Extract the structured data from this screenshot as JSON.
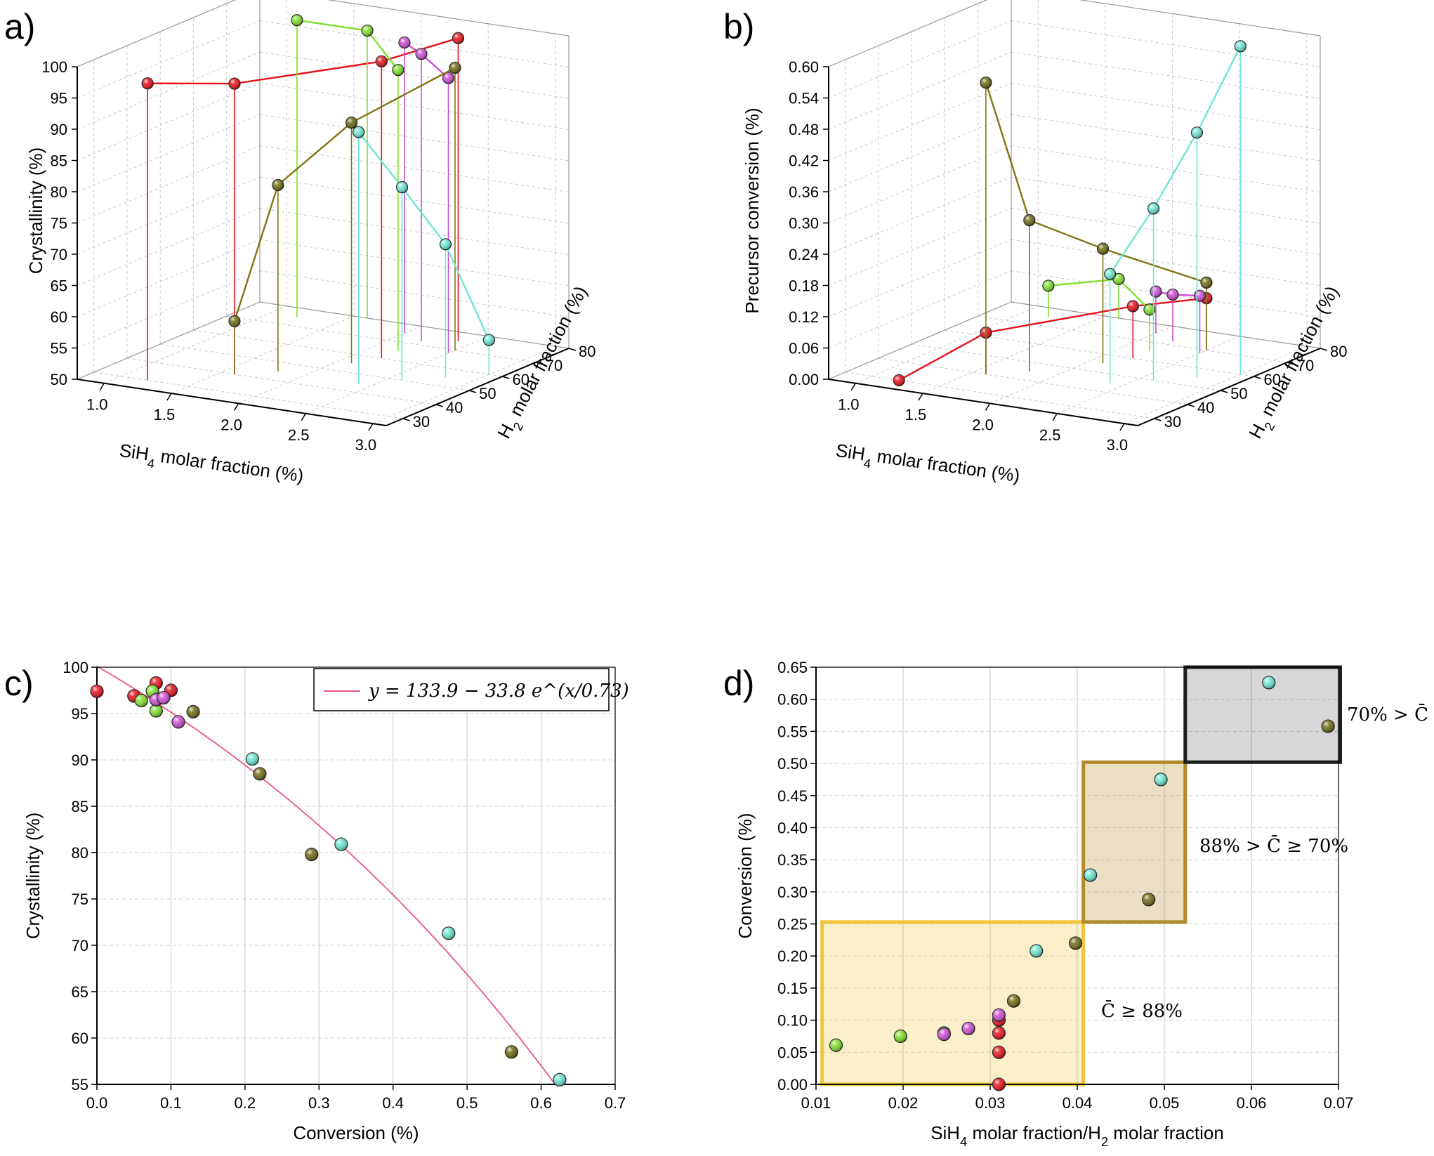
{
  "colors": {
    "red": "#e8101a",
    "green": "#7ee02c",
    "magenta": "#cc4fd3",
    "olive": "#6e6a14",
    "olive_line": "#807413",
    "cyan": "#6ee6d4",
    "fit": "#e8587e",
    "box_light": "#f0c43c",
    "box_mid": "#b28a2c",
    "box_dark": "#1b1f1a"
  },
  "panel_labels": [
    "a)",
    "b)",
    "c)",
    "d)"
  ],
  "chart_data": [
    {
      "id": "a",
      "type": "scatter",
      "projection": "3d",
      "zlabel": "Crystallinity (%)",
      "xlabel": "SiH4 molar fraction (%)",
      "ylabel": "H2 molar fraction (%)",
      "xticks": [
        "1.0",
        "1.5",
        "2.0",
        "2.5",
        "3.0"
      ],
      "yticks": [
        "30",
        "40",
        "50",
        "60",
        "70",
        "80"
      ],
      "zticks": [
        "50",
        "55",
        "60",
        "65",
        "70",
        "75",
        "80",
        "85",
        "90",
        "95",
        "100"
      ],
      "xlim": [
        0.8,
        3.1
      ],
      "ylim": [
        25,
        80
      ],
      "zlim": [
        50,
        100
      ],
      "series": [
        {
          "color": "red",
          "points": [
            [
              1.2,
              30,
              97.5
            ],
            [
              1.6,
              40,
              96.5
            ],
            [
              2.2,
              60,
              97.5
            ],
            [
              2.4,
              75,
              98.5
            ]
          ]
        },
        {
          "color": "green",
          "points": [
            [
              1.2,
              75,
              97.5
            ],
            [
              1.6,
              80,
              96
            ],
            [
              2.2,
              65,
              95
            ]
          ]
        },
        {
          "color": "magenta",
          "points": [
            [
              2.0,
              75,
              96.5
            ],
            [
              2.2,
              72,
              96
            ],
            [
              2.5,
              68,
              94
            ]
          ]
        },
        {
          "color": "olive",
          "points": [
            [
              1.6,
              40,
              58.5
            ],
            [
              1.8,
              45,
              79.8
            ],
            [
              2.1,
              55,
              88.5
            ],
            [
              2.5,
              70,
              95.2
            ]
          ]
        },
        {
          "color": "cyan",
          "points": [
            [
              2.4,
              45,
              90.2
            ],
            [
              2.6,
              50,
              80.9
            ],
            [
              2.8,
              55,
              71.3
            ],
            [
              3.0,
              60,
              55.5
            ]
          ]
        }
      ]
    },
    {
      "id": "b",
      "type": "scatter",
      "projection": "3d",
      "zlabel": "Precursor conversion (%)",
      "xlabel": "SiH4 molar fraction (%)",
      "ylabel": "H2 molar fraction (%)",
      "xticks": [
        "1.0",
        "1.5",
        "2.0",
        "2.5",
        "3.0"
      ],
      "yticks": [
        "30",
        "40",
        "50",
        "60",
        "70",
        "80"
      ],
      "zticks": [
        "0.00",
        "0.06",
        "0.12",
        "0.18",
        "0.24",
        "0.30",
        "0.36",
        "0.42",
        "0.48",
        "0.54",
        "0.60"
      ],
      "xlim": [
        0.8,
        3.1
      ],
      "ylim": [
        25,
        80
      ],
      "zlim": [
        0,
        0.6
      ],
      "series": [
        {
          "color": "red",
          "points": [
            [
              1.2,
              30,
              0.0
            ],
            [
              1.6,
              40,
              0.08
            ],
            [
              2.2,
              60,
              0.1
            ],
            [
              2.5,
              70,
              0.1
            ]
          ]
        },
        {
          "color": "green",
          "points": [
            [
              1.2,
              75,
              0.06
            ],
            [
              1.6,
              80,
              0.075
            ],
            [
              2.2,
              65,
              0.08
            ]
          ]
        },
        {
          "color": "magenta",
          "points": [
            [
              2.0,
              75,
              0.08
            ],
            [
              2.2,
              72,
              0.09
            ],
            [
              2.5,
              68,
              0.11
            ]
          ]
        },
        {
          "color": "olive",
          "points": [
            [
              1.6,
              40,
              0.56
            ],
            [
              1.8,
              45,
              0.29
            ],
            [
              2.1,
              55,
              0.22
            ],
            [
              2.5,
              70,
              0.13
            ]
          ]
        },
        {
          "color": "cyan",
          "points": [
            [
              2.4,
              45,
              0.21
            ],
            [
              2.6,
              50,
              0.33
            ],
            [
              2.8,
              55,
              0.47
            ],
            [
              3.0,
              60,
              0.63
            ]
          ]
        }
      ]
    },
    {
      "id": "c",
      "type": "scatter",
      "xlabel": "Conversion (%)",
      "ylabel": "Crystallinity (%)",
      "xlim": [
        0,
        0.7
      ],
      "ylim": [
        55,
        100
      ],
      "xticks": [
        "0.0",
        "0.1",
        "0.2",
        "0.3",
        "0.4",
        "0.5",
        "0.6",
        "0.7"
      ],
      "yticks": [
        "55",
        "60",
        "65",
        "70",
        "75",
        "80",
        "85",
        "90",
        "95",
        "100"
      ],
      "grid": true,
      "legend": "top-right",
      "legend_label": "y = 133.9 − 33.8 e^(x/0.73)",
      "fit": {
        "a": 133.9,
        "b": 33.8,
        "c": 0.73
      },
      "series": [
        {
          "color": "red",
          "points": [
            [
              0.0,
              97.4
            ],
            [
              0.05,
              96.9
            ],
            [
              0.08,
              98.3
            ],
            [
              0.1,
              97.5
            ]
          ]
        },
        {
          "color": "green",
          "points": [
            [
              0.06,
              96.4
            ],
            [
              0.075,
              97.4
            ],
            [
              0.08,
              95.3
            ]
          ]
        },
        {
          "color": "magenta",
          "points": [
            [
              0.08,
              96.5
            ],
            [
              0.09,
              96.7
            ],
            [
              0.11,
              94.1
            ]
          ]
        },
        {
          "color": "olive",
          "points": [
            [
              0.13,
              95.2
            ],
            [
              0.22,
              88.5
            ],
            [
              0.29,
              79.8
            ],
            [
              0.56,
              58.5
            ]
          ]
        },
        {
          "color": "cyan",
          "points": [
            [
              0.21,
              90.1
            ],
            [
              0.33,
              80.9
            ],
            [
              0.475,
              71.3
            ],
            [
              0.625,
              55.5
            ]
          ]
        }
      ]
    },
    {
      "id": "d",
      "type": "scatter",
      "xlabel": "SiH4 molar fraction/H2 molar fraction",
      "ylabel": "Conversion (%)",
      "xlim": [
        0.01,
        0.07
      ],
      "ylim": [
        0,
        0.65
      ],
      "xticks": [
        "0.01",
        "0.02",
        "0.03",
        "0.04",
        "0.05",
        "0.06",
        "0.07"
      ],
      "yticks": [
        "0.00",
        "0.05",
        "0.10",
        "0.15",
        "0.20",
        "0.25",
        "0.30",
        "0.35",
        "0.40",
        "0.45",
        "0.50",
        "0.55",
        "0.60",
        "0.65"
      ],
      "grid": true,
      "series": [
        {
          "color": "red",
          "points": [
            [
              0.031,
              0.0
            ],
            [
              0.031,
              0.05
            ],
            [
              0.031,
              0.08
            ],
            [
              0.031,
              0.1
            ]
          ]
        },
        {
          "color": "green",
          "points": [
            [
              0.0123,
              0.061
            ],
            [
              0.0197,
              0.075
            ],
            [
              0.0247,
              0.08
            ]
          ]
        },
        {
          "color": "magenta",
          "points": [
            [
              0.0247,
              0.078
            ],
            [
              0.0275,
              0.087
            ],
            [
              0.031,
              0.108
            ]
          ]
        },
        {
          "color": "olive",
          "points": [
            [
              0.0327,
              0.13
            ],
            [
              0.0398,
              0.22
            ],
            [
              0.0482,
              0.288
            ],
            [
              0.0688,
              0.558
            ]
          ]
        },
        {
          "color": "cyan",
          "points": [
            [
              0.0353,
              0.208
            ],
            [
              0.0415,
              0.326
            ],
            [
              0.0496,
              0.475
            ],
            [
              0.062,
              0.626
            ]
          ]
        }
      ],
      "regions": [
        {
          "x": [
            0.0107,
            0.0407
          ],
          "y": [
            0.0,
            0.253
          ],
          "color": "box_light",
          "label": "C̄ ≥ 88%"
        },
        {
          "x": [
            0.0407,
            0.0524
          ],
          "y": [
            0.253,
            0.502
          ],
          "color": "box_mid",
          "label": "88%  > C̄ ≥ 70%"
        },
        {
          "x": [
            0.0524,
            0.0702
          ],
          "y": [
            0.502,
            0.65
          ],
          "color": "box_dark",
          "label": "70% > C̄"
        }
      ]
    }
  ]
}
